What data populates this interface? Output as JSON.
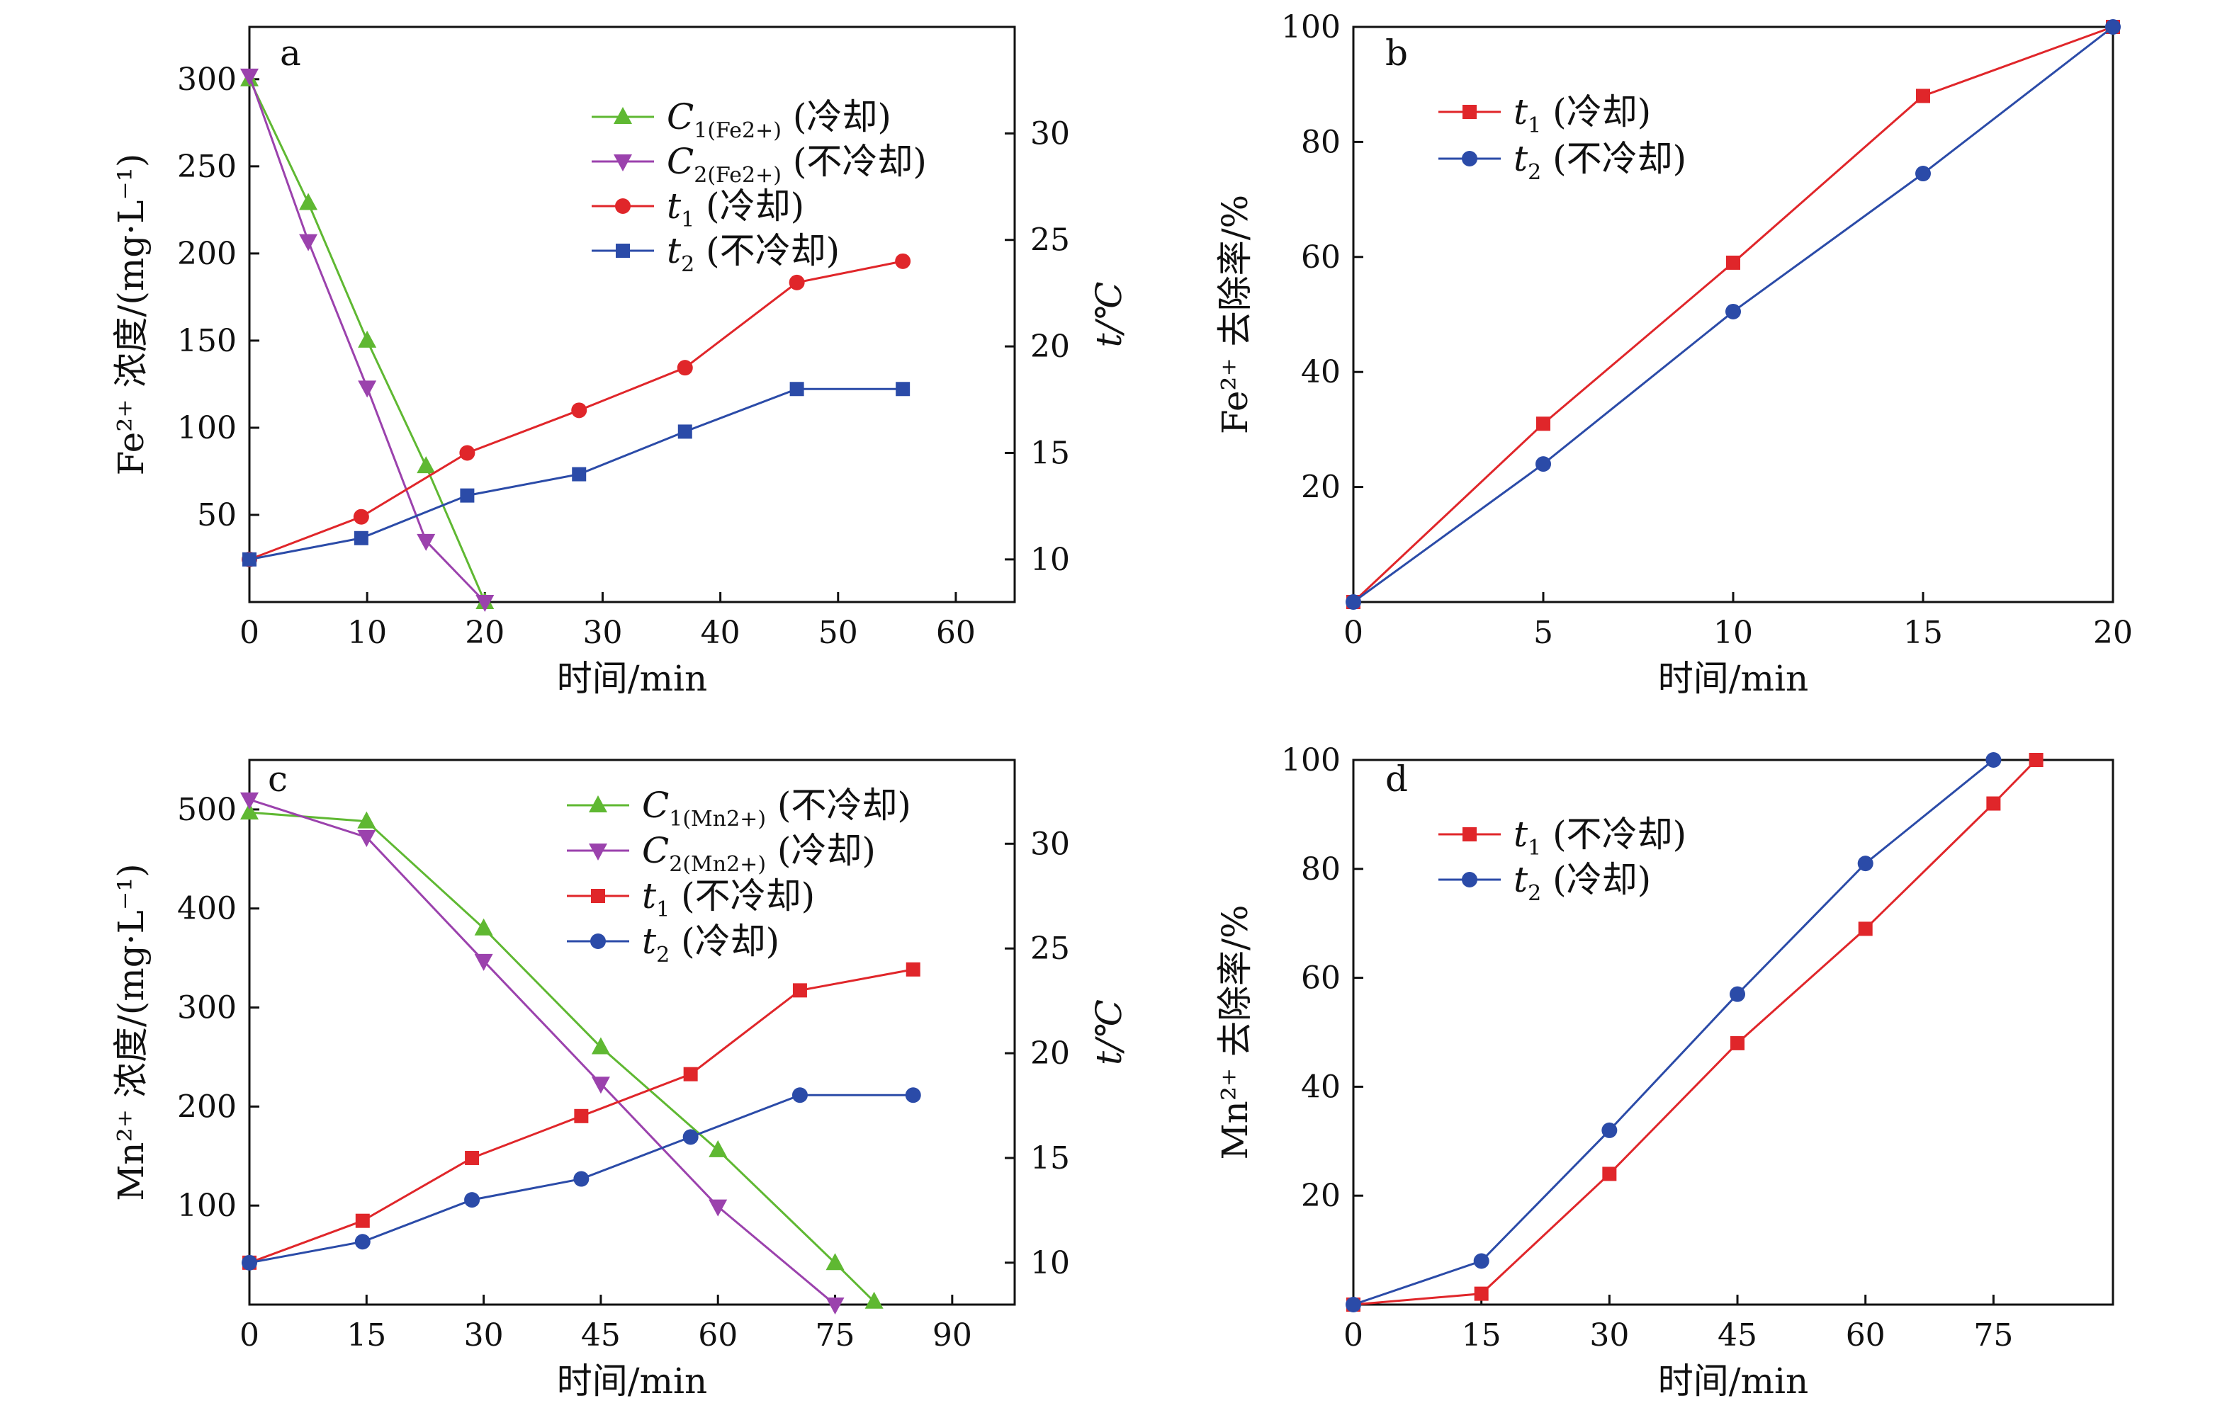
{
  "colors": {
    "green": "#5fb832",
    "purple": "#9b42ad",
    "red": "#e0262a",
    "blue": "#2b4ba8"
  },
  "chart_data": [
    {
      "panel": "a",
      "type": "line",
      "xlabel": "时间/min",
      "ylabel": "Fe²⁺ 浓度/(mg·L⁻¹)",
      "y2label": "t/℃",
      "xlim": [
        0,
        65
      ],
      "ylim": [
        0,
        330
      ],
      "y2lim": [
        8,
        35
      ],
      "xticks": [
        0,
        10,
        20,
        30,
        40,
        50,
        60
      ],
      "yticks": [
        50,
        100,
        150,
        200,
        250,
        300
      ],
      "y2ticks": [
        10,
        15,
        20,
        25,
        30
      ],
      "legend_position": "top-right",
      "series": [
        {
          "name": "C1(Fe2+) (冷却)",
          "axis": "left",
          "marker": "triangle-up",
          "color": "#5fb832",
          "x": [
            0,
            5,
            10,
            15,
            20
          ],
          "y": [
            300,
            229,
            150,
            78,
            0
          ]
        },
        {
          "name": "C2(Fe2+) (不冷却)",
          "axis": "left",
          "marker": "triangle-down",
          "color": "#9b42ad",
          "x": [
            0,
            5,
            10,
            15,
            20
          ],
          "y": [
            302,
            207,
            123,
            35,
            0
          ]
        },
        {
          "name": "t1 (冷却)",
          "axis": "right",
          "marker": "circle",
          "color": "#e0262a",
          "x": [
            0,
            9.5,
            18.5,
            28,
            37,
            46.5,
            55.5
          ],
          "y": [
            10,
            12,
            15,
            17,
            19,
            23,
            24
          ]
        },
        {
          "name": "t2 (不冷却)",
          "axis": "right",
          "marker": "square",
          "color": "#2b4ba8",
          "x": [
            0,
            9.5,
            18.5,
            28,
            37,
            46.5,
            55.5
          ],
          "y": [
            10,
            11,
            13,
            14,
            16,
            18,
            18
          ]
        }
      ],
      "legend": [
        {
          "main": "C",
          "sub": "1(Fe2+)",
          "rest": " (冷却)"
        },
        {
          "main": "C",
          "sub": "2(Fe2+)",
          "rest": " (不冷却)"
        },
        {
          "main": "t",
          "sub": "1",
          "rest": " (冷却)"
        },
        {
          "main": "t",
          "sub": "2",
          "rest": " (不冷却)"
        }
      ]
    },
    {
      "panel": "b",
      "type": "line",
      "xlabel": "时间/min",
      "ylabel": "Fe²⁺ 去除率/%",
      "xlim": [
        0,
        20
      ],
      "ylim": [
        0,
        100
      ],
      "xticks": [
        0,
        5,
        10,
        15,
        20
      ],
      "yticks": [
        20,
        40,
        60,
        80,
        100
      ],
      "legend_position": "top-left",
      "series": [
        {
          "name": "t1 (冷却)",
          "marker": "square",
          "color": "#e0262a",
          "x": [
            0,
            5,
            10,
            15,
            20
          ],
          "y": [
            0,
            31,
            59,
            88,
            100
          ]
        },
        {
          "name": "t2 (不冷却)",
          "marker": "circle",
          "color": "#2b4ba8",
          "x": [
            0,
            5,
            10,
            15,
            20
          ],
          "y": [
            0,
            24,
            50.5,
            74.5,
            100
          ]
        }
      ],
      "legend": [
        {
          "main": "t",
          "sub": "1",
          "rest": " (冷却)"
        },
        {
          "main": "t",
          "sub": "2",
          "rest": " (不冷却)"
        }
      ]
    },
    {
      "panel": "c",
      "type": "line",
      "xlabel": "时间/min",
      "ylabel": "Mn²⁺ 浓度/(mg·L⁻¹)",
      "y2label": "t/℃",
      "xlim": [
        0,
        98
      ],
      "ylim": [
        0,
        550
      ],
      "y2lim": [
        8,
        34
      ],
      "xticks": [
        0,
        15,
        30,
        45,
        60,
        75,
        90
      ],
      "yticks": [
        100,
        200,
        300,
        400,
        500
      ],
      "y2ticks": [
        10,
        15,
        20,
        25,
        30
      ],
      "legend_position": "top-right",
      "series": [
        {
          "name": "C1(Mn2+) (不冷却)",
          "axis": "left",
          "marker": "triangle-up",
          "color": "#5fb832",
          "x": [
            0,
            15,
            30,
            45,
            60,
            75,
            80
          ],
          "y": [
            497,
            488,
            380,
            260,
            156,
            42,
            3
          ]
        },
        {
          "name": "C2(Mn2+) (冷却)",
          "axis": "left",
          "marker": "triangle-down",
          "color": "#9b42ad",
          "x": [
            0,
            15,
            30,
            45,
            60,
            75
          ],
          "y": [
            510,
            472,
            347,
            223,
            99,
            0
          ]
        },
        {
          "name": "t1 (不冷却)",
          "axis": "right",
          "marker": "square",
          "color": "#e0262a",
          "x": [
            0,
            14.5,
            28.5,
            42.5,
            56.5,
            70.5,
            85
          ],
          "y": [
            10,
            12,
            15,
            17,
            19,
            23,
            24
          ]
        },
        {
          "name": "t2 (冷却)",
          "axis": "right",
          "marker": "circle",
          "color": "#2b4ba8",
          "x": [
            0,
            14.5,
            28.5,
            42.5,
            56.5,
            70.5,
            85
          ],
          "y": [
            10,
            11,
            13,
            14,
            16,
            18,
            18
          ]
        }
      ],
      "legend": [
        {
          "main": "C",
          "sub": "1(Mn2+)",
          "rest": " (不冷却)"
        },
        {
          "main": "C",
          "sub": "2(Mn2+)",
          "rest": " (冷却)"
        },
        {
          "main": "t",
          "sub": "1",
          "rest": " (不冷却)"
        },
        {
          "main": "t",
          "sub": "2",
          "rest": " (冷却)"
        }
      ]
    },
    {
      "panel": "d",
      "type": "line",
      "xlabel": "时间/min",
      "ylabel": "Mn²⁺ 去除率/%",
      "xlim": [
        0,
        89
      ],
      "ylim": [
        0,
        100
      ],
      "xticks": [
        0,
        15,
        30,
        45,
        60,
        75
      ],
      "yticks": [
        20,
        40,
        60,
        80,
        100
      ],
      "legend_position": "top-left",
      "series": [
        {
          "name": "t1 (不冷却)",
          "marker": "square",
          "color": "#e0262a",
          "x": [
            0,
            15,
            30,
            45,
            60,
            75,
            80
          ],
          "y": [
            0,
            2,
            24,
            48,
            69,
            92,
            100
          ]
        },
        {
          "name": "t2 (冷却)",
          "marker": "circle",
          "color": "#2b4ba8",
          "x": [
            0,
            15,
            30,
            45,
            60,
            75
          ],
          "y": [
            0,
            8,
            32,
            57,
            81,
            100
          ]
        }
      ],
      "legend": [
        {
          "main": "t",
          "sub": "1",
          "rest": " (不冷却)"
        },
        {
          "main": "t",
          "sub": "2",
          "rest": " (冷却)"
        }
      ]
    }
  ]
}
